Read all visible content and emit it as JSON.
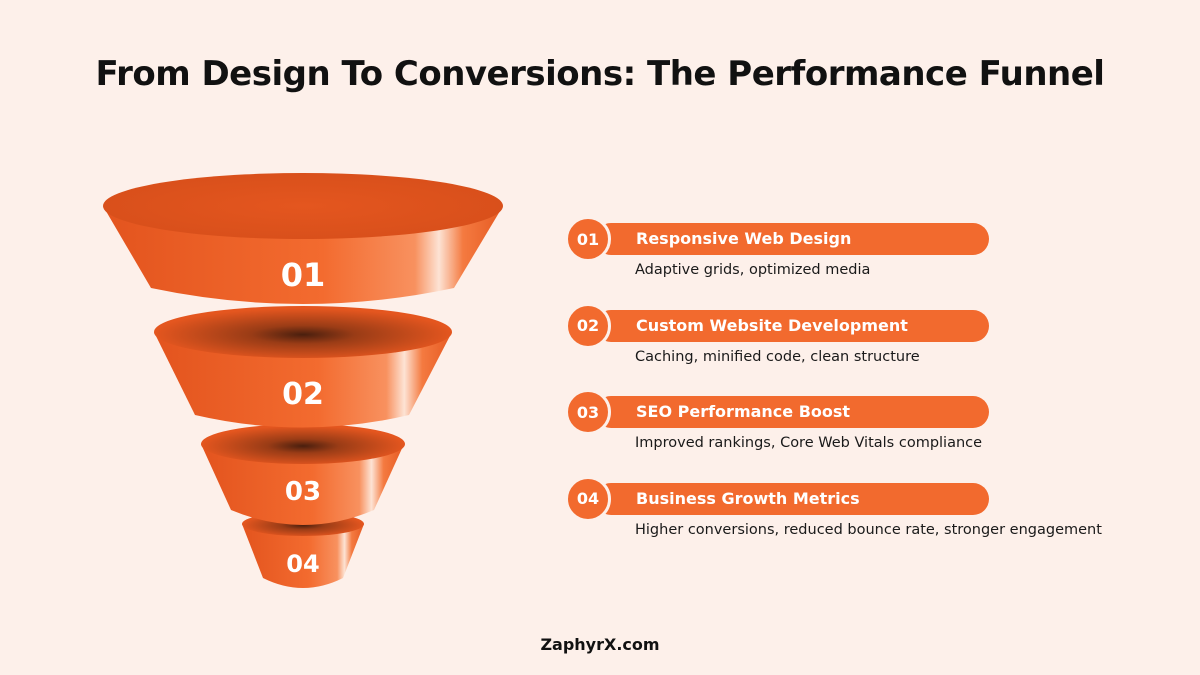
{
  "title": "From Design To Conversions: The Performance Funnel",
  "colors": {
    "accent": "#f26a2e",
    "accent_dark": "#d9501b",
    "background": "#fdf0ea",
    "text": "#111111"
  },
  "funnel": {
    "levels": [
      "01",
      "02",
      "03",
      "04"
    ]
  },
  "steps": [
    {
      "number": "01",
      "title": "Responsive Web Design",
      "description": "Adaptive grids, optimized media"
    },
    {
      "number": "02",
      "title": "Custom Website Development",
      "description": "Caching, minified code, clean structure"
    },
    {
      "number": "03",
      "title": "SEO Performance Boost",
      "description": "Improved rankings, Core Web Vitals compliance"
    },
    {
      "number": "04",
      "title": "Business Growth Metrics",
      "description": "Higher conversions, reduced bounce rate, stronger engagement"
    }
  ],
  "footer": "ZaphyrX.com"
}
